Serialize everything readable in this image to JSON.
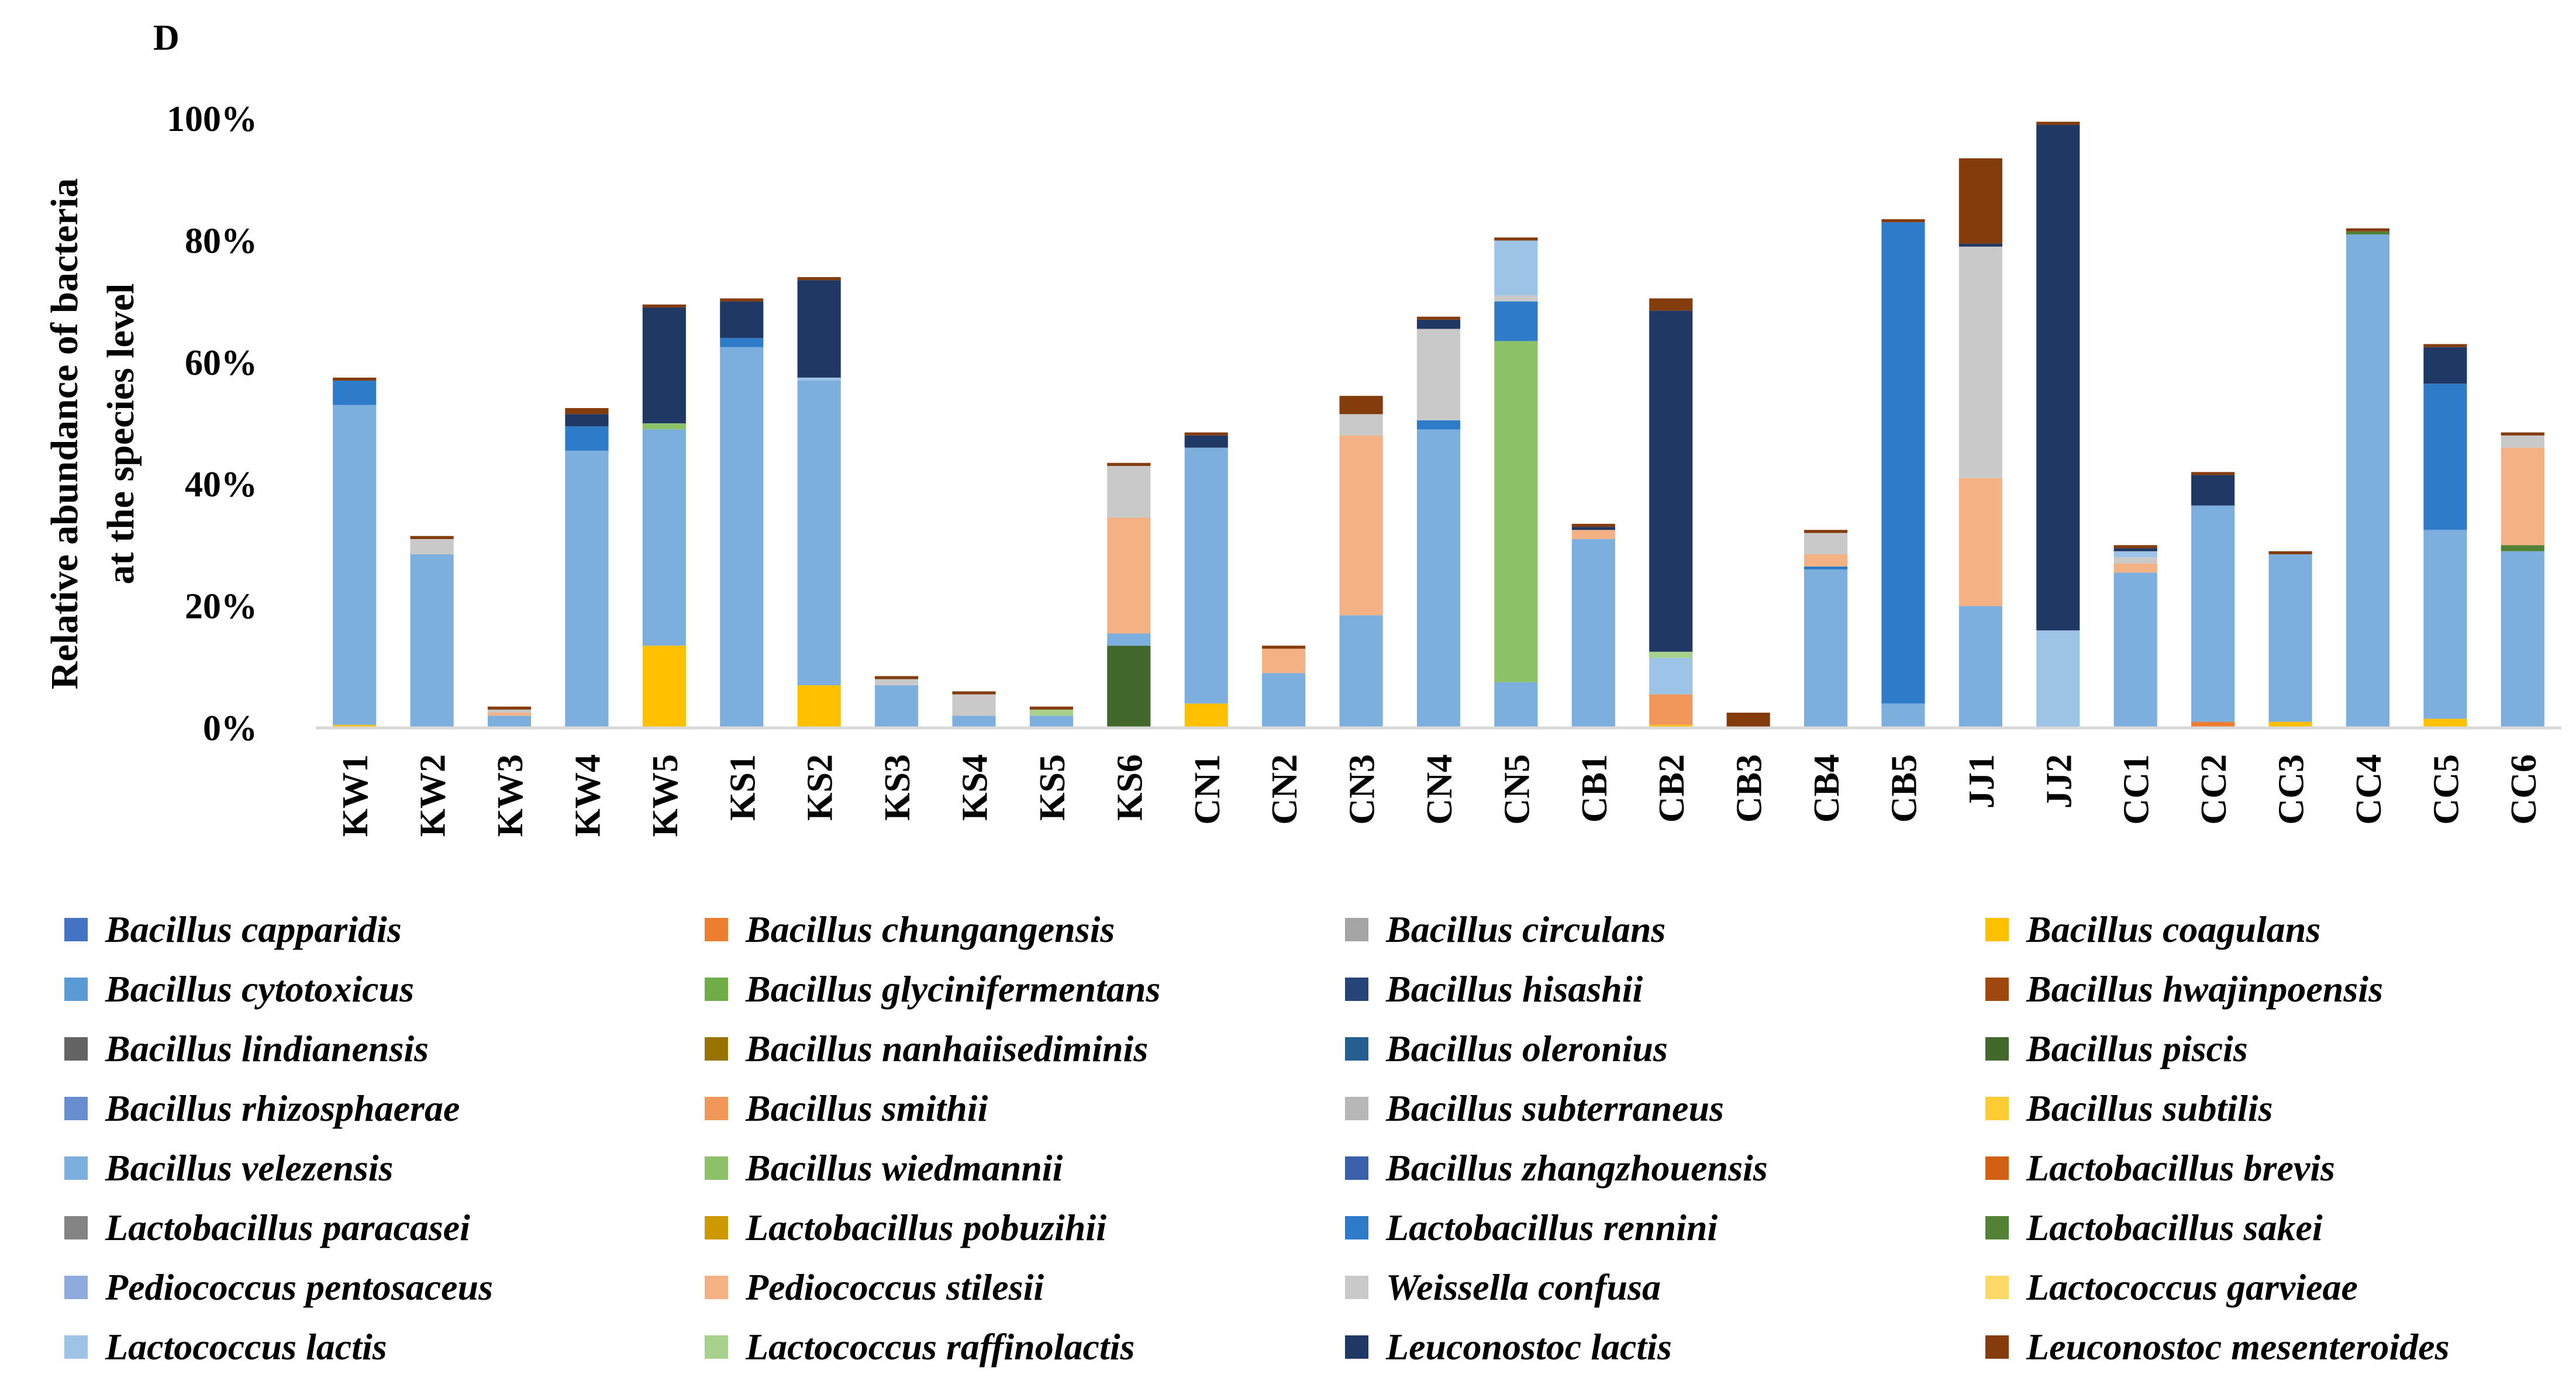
{
  "chart_data": {
    "type": "bar",
    "stacked": true,
    "panel_label": "D",
    "title": "",
    "xlabel": "",
    "ylabel_lines": [
      "Relative abundance of bacteria",
      "at the species level"
    ],
    "ylim": [
      0,
      100
    ],
    "yticks": [
      "0%",
      "20%",
      "40%",
      "60%",
      "80%",
      "100%"
    ],
    "categories": [
      "KW1",
      "KW2",
      "KW3",
      "KW4",
      "KW5",
      "KS1",
      "KS2",
      "KS3",
      "KS4",
      "KS5",
      "KS6",
      "CN1",
      "CN2",
      "CN3",
      "CN4",
      "CN5",
      "CB1",
      "CB2",
      "CB3",
      "CB4",
      "CB5",
      "JJ1",
      "JJ2",
      "CC1",
      "CC2",
      "CC3",
      "CC4",
      "CC5",
      "CC6"
    ],
    "series": [
      {
        "name": "Bacillus capparidis",
        "color": "#4472c4",
        "values": [
          0,
          0,
          0,
          0,
          0,
          0,
          0,
          0,
          0,
          0,
          0,
          0,
          0,
          0,
          0,
          0,
          0,
          0,
          0,
          0,
          0,
          0,
          0,
          0,
          0,
          0,
          0,
          0,
          0
        ]
      },
      {
        "name": "Bacillus chungangensis",
        "color": "#ed7d31",
        "values": [
          0,
          0,
          0,
          0,
          0,
          0,
          0,
          0,
          0,
          0,
          0,
          0,
          0,
          0,
          0,
          0,
          0,
          0,
          0,
          0,
          0,
          0,
          0,
          0,
          1,
          0,
          0,
          0,
          0
        ]
      },
      {
        "name": "Bacillus circulans",
        "color": "#a5a5a5",
        "values": [
          0,
          0,
          0,
          0,
          0,
          0,
          0,
          0,
          0,
          0,
          0,
          0,
          0,
          0,
          0,
          0,
          0,
          0,
          0,
          0,
          0,
          0,
          0,
          0,
          0,
          0,
          0,
          0,
          0
        ]
      },
      {
        "name": "Bacillus coagulans",
        "color": "#ffc000",
        "values": [
          0.5,
          0,
          0,
          0,
          13.5,
          0,
          7,
          0,
          0,
          0,
          0,
          4,
          0,
          0,
          0,
          0,
          0,
          0.5,
          0,
          0,
          0,
          0,
          0,
          0,
          0,
          1,
          0,
          1.5,
          0
        ]
      },
      {
        "name": "Bacillus cytotoxicus",
        "color": "#5b9bd5",
        "values": [
          0,
          0,
          0,
          0,
          0,
          0,
          0,
          0,
          0,
          0,
          0,
          0,
          0,
          0,
          0,
          0,
          0,
          0,
          0,
          0,
          0,
          0,
          0,
          0,
          0,
          0,
          0,
          0,
          0
        ]
      },
      {
        "name": "Bacillus glycinifermentans",
        "color": "#70ad47",
        "values": [
          0,
          0,
          0,
          0,
          0,
          0,
          0,
          0,
          0,
          0,
          0,
          0,
          0,
          0,
          0,
          0,
          0,
          0,
          0,
          0,
          0,
          0,
          0,
          0,
          0,
          0,
          0,
          0,
          0
        ]
      },
      {
        "name": "Bacillus hisashii",
        "color": "#264478",
        "values": [
          0,
          0,
          0,
          0,
          0,
          0,
          0,
          0,
          0,
          0,
          0,
          0,
          0,
          0,
          0,
          0,
          0,
          0,
          0,
          0,
          0,
          0,
          0,
          0,
          0,
          0,
          0,
          0,
          0
        ]
      },
      {
        "name": "Bacillus hwajinpoensis",
        "color": "#9e480e",
        "values": [
          0,
          0,
          0,
          0,
          0,
          0,
          0,
          0,
          0,
          0,
          0,
          0,
          0,
          0,
          0,
          0,
          0,
          0,
          0,
          0,
          0,
          0,
          0,
          0,
          0,
          0,
          0,
          0,
          0
        ]
      },
      {
        "name": "Bacillus lindianensis",
        "color": "#636363",
        "values": [
          0,
          0,
          0,
          0,
          0,
          0,
          0,
          0,
          0,
          0,
          0,
          0,
          0,
          0,
          0,
          0,
          0,
          0,
          0,
          0,
          0,
          0,
          0,
          0,
          0,
          0,
          0,
          0,
          0
        ]
      },
      {
        "name": "Bacillus nanhaiisediminis",
        "color": "#997300",
        "values": [
          0,
          0,
          0,
          0,
          0,
          0,
          0,
          0,
          0,
          0,
          0,
          0,
          0,
          0,
          0,
          0,
          0,
          0,
          0,
          0,
          0,
          0,
          0,
          0,
          0,
          0,
          0,
          0,
          0
        ]
      },
      {
        "name": "Bacillus oleronius",
        "color": "#255e91",
        "values": [
          0,
          0,
          0,
          0,
          0,
          0,
          0,
          0,
          0,
          0,
          0,
          0,
          0,
          0,
          0,
          0,
          0,
          0,
          0,
          0,
          0,
          0,
          0,
          0,
          0,
          0,
          0,
          0,
          0
        ]
      },
      {
        "name": "Bacillus piscis",
        "color": "#43682b",
        "values": [
          0,
          0,
          0,
          0,
          0,
          0,
          0,
          0,
          0,
          0,
          13.5,
          0,
          0,
          0,
          0,
          0,
          0,
          0,
          0,
          0,
          0,
          0,
          0,
          0,
          0,
          0,
          0,
          0,
          0
        ]
      },
      {
        "name": "Bacillus rhizosphaerae",
        "color": "#698ed0",
        "values": [
          0,
          0,
          0,
          0,
          0,
          0,
          0,
          0,
          0,
          0,
          0,
          0,
          0,
          0,
          0,
          0,
          0,
          0,
          0,
          0,
          0,
          0,
          0,
          0,
          0,
          0,
          0,
          0,
          0
        ]
      },
      {
        "name": "Bacillus smithii",
        "color": "#f1975a",
        "values": [
          0,
          0,
          0,
          0,
          0,
          0,
          0,
          0,
          0,
          0,
          0,
          0,
          0,
          0,
          0,
          0,
          0,
          5,
          0,
          0,
          0,
          0,
          0,
          0,
          0,
          0,
          0,
          0,
          0
        ]
      },
      {
        "name": "Bacillus subterraneus",
        "color": "#b7b7b7",
        "values": [
          0,
          0,
          0,
          0,
          0,
          0,
          0,
          0,
          0,
          0,
          0,
          0,
          0,
          0,
          0,
          0,
          0,
          0,
          0,
          0,
          0,
          0,
          0,
          0,
          0,
          0,
          0,
          0,
          0
        ]
      },
      {
        "name": "Bacillus subtilis",
        "color": "#ffcd33",
        "values": [
          0,
          0,
          0,
          0,
          0,
          0,
          0,
          0,
          0,
          0,
          0,
          0,
          0,
          0,
          0,
          0,
          0,
          0,
          0,
          0,
          0,
          0,
          0,
          0,
          0,
          0,
          0,
          0,
          0
        ]
      },
      {
        "name": "Bacillus velezensis",
        "color": "#7cafdd",
        "values": [
          52.5,
          28.5,
          2,
          45.5,
          35.5,
          62.5,
          50,
          7,
          2,
          2,
          2,
          42,
          9,
          18.5,
          49,
          7.5,
          31,
          0,
          0,
          26,
          4,
          20,
          0,
          25.5,
          35.5,
          27.5,
          81,
          31,
          29
        ]
      },
      {
        "name": "Bacillus wiedmannii",
        "color": "#8cc168",
        "values": [
          0,
          0,
          0,
          0,
          1,
          0,
          0,
          0,
          0,
          0,
          0,
          0,
          0,
          0,
          0,
          56,
          0,
          0,
          0,
          0,
          0,
          0,
          0,
          0,
          0,
          0,
          0,
          0,
          0
        ]
      },
      {
        "name": "Bacillus zhangzhouensis",
        "color": "#3a5fab",
        "values": [
          0,
          0,
          0,
          0,
          0,
          0,
          0,
          0,
          0,
          0,
          0,
          0,
          0,
          0,
          0,
          0,
          0,
          0,
          0,
          0,
          0,
          0,
          0,
          0,
          0,
          0,
          0,
          0,
          0
        ]
      },
      {
        "name": "Lactobacillus brevis",
        "color": "#d26012",
        "values": [
          0,
          0,
          0,
          0,
          0,
          0,
          0,
          0,
          0,
          0,
          0,
          0,
          0,
          0,
          0,
          0,
          0,
          0,
          0,
          0,
          0,
          0,
          0,
          0,
          0,
          0,
          0,
          0,
          0
        ]
      },
      {
        "name": "Lactobacillus paracasei",
        "color": "#848484",
        "values": [
          0,
          0,
          0,
          0,
          0,
          0,
          0,
          0,
          0,
          0,
          0,
          0,
          0,
          0,
          0,
          0,
          0,
          0,
          0,
          0,
          0,
          0,
          0,
          0,
          0,
          0,
          0,
          0,
          0
        ]
      },
      {
        "name": "Lactobacillus pobuzihii",
        "color": "#cc9a00",
        "values": [
          0,
          0,
          0,
          0,
          0,
          0,
          0,
          0,
          0,
          0,
          0,
          0,
          0,
          0,
          0,
          0,
          0,
          0,
          0,
          0,
          0,
          0,
          0,
          0,
          0,
          0,
          0,
          0,
          0
        ]
      },
      {
        "name": "Lactobacillus rennini",
        "color": "#2e7bc9",
        "values": [
          4,
          0,
          0,
          4,
          0,
          1.5,
          0,
          0,
          0,
          0,
          0,
          0,
          0,
          0,
          1.5,
          6.5,
          0,
          0,
          0,
          0.5,
          79,
          0,
          0,
          0,
          0,
          0,
          0,
          24,
          0
        ]
      },
      {
        "name": "Lactobacillus sakei",
        "color": "#548235",
        "values": [
          0,
          0,
          0,
          0,
          0,
          0,
          0,
          0,
          0,
          0,
          0,
          0,
          0,
          0,
          0,
          0,
          0,
          0,
          0,
          0,
          0,
          0,
          0,
          0,
          0,
          0,
          0.5,
          0,
          1
        ]
      },
      {
        "name": "Pediococcus pentosaceus",
        "color": "#8faadc",
        "values": [
          0,
          0,
          0,
          0,
          0,
          0,
          0,
          0,
          0,
          0,
          0,
          0,
          0,
          0,
          0,
          0,
          0,
          0,
          0,
          0,
          0,
          0,
          0,
          0,
          0,
          0,
          0,
          0,
          0
        ]
      },
      {
        "name": "Pediococcus stilesii",
        "color": "#f4b183",
        "values": [
          0,
          0,
          0.5,
          0,
          0,
          0,
          0,
          0,
          0,
          0,
          19,
          0,
          4,
          29.5,
          0,
          0,
          1.5,
          0,
          0,
          2,
          0,
          21,
          0,
          1.5,
          0,
          0,
          0,
          0,
          16
        ]
      },
      {
        "name": "Weissella confusa",
        "color": "#c9c9c9",
        "values": [
          0,
          2.5,
          0.5,
          0,
          0,
          0,
          0,
          1,
          3.5,
          0,
          8.5,
          0,
          0,
          3.5,
          15,
          1,
          0,
          0,
          0,
          3.5,
          0,
          38,
          0,
          1,
          0,
          0,
          0,
          0,
          2
        ]
      },
      {
        "name": "Lactococcus garvieae",
        "color": "#ffd966",
        "values": [
          0,
          0,
          0,
          0,
          0,
          0,
          0,
          0,
          0,
          0,
          0,
          0,
          0,
          0,
          0,
          0,
          0,
          0,
          0,
          0,
          0,
          0,
          0,
          0,
          0,
          0,
          0,
          0,
          0
        ]
      },
      {
        "name": "Lactococcus lactis",
        "color": "#9dc3e6",
        "values": [
          0,
          0,
          0,
          0,
          0,
          0,
          0.5,
          0,
          0,
          0,
          0,
          0,
          0,
          0,
          0,
          9,
          0,
          6,
          0,
          0,
          0,
          0,
          16,
          1,
          0,
          0,
          0,
          0,
          0
        ]
      },
      {
        "name": "Lactococcus raffinolactis",
        "color": "#a9d18e",
        "values": [
          0,
          0,
          0,
          0,
          0,
          0,
          0,
          0,
          0,
          1,
          0,
          0,
          0,
          0,
          0,
          0,
          0,
          1,
          0,
          0,
          0,
          0,
          0,
          0,
          0,
          0,
          0,
          0,
          0
        ]
      },
      {
        "name": "Leuconostoc lactis",
        "color": "#1f3864",
        "values": [
          0,
          0,
          0,
          2,
          19,
          6,
          16,
          0,
          0,
          0,
          0,
          2,
          0,
          0,
          1.5,
          0,
          0.5,
          56,
          0,
          0,
          0,
          0.5,
          83,
          0.5,
          5,
          0,
          0,
          6,
          0
        ]
      },
      {
        "name": "Leuconostoc mesenteroides",
        "color": "#843c0c",
        "values": [
          0.5,
          0.5,
          0.5,
          1,
          0.5,
          0.5,
          0.5,
          0.5,
          0.5,
          0.5,
          0.5,
          0.5,
          0.5,
          3,
          0.5,
          0.5,
          0.5,
          2,
          2.5,
          0.5,
          0.5,
          14,
          0.5,
          0.5,
          0.5,
          0.5,
          0.5,
          0.5,
          0.5
        ]
      }
    ]
  }
}
